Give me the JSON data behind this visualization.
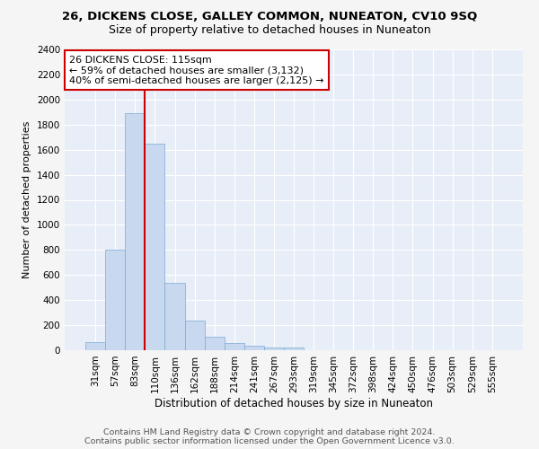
{
  "title": "26, DICKENS CLOSE, GALLEY COMMON, NUNEATON, CV10 9SQ",
  "subtitle": "Size of property relative to detached houses in Nuneaton",
  "xlabel": "Distribution of detached houses by size in Nuneaton",
  "ylabel": "Number of detached properties",
  "bar_color": "#c8d8ee",
  "bar_edge_color": "#7baad4",
  "background_color": "#e8eef8",
  "grid_color": "#ffffff",
  "categories": [
    "31sqm",
    "57sqm",
    "83sqm",
    "110sqm",
    "136sqm",
    "162sqm",
    "188sqm",
    "214sqm",
    "241sqm",
    "267sqm",
    "293sqm",
    "319sqm",
    "345sqm",
    "372sqm",
    "398sqm",
    "424sqm",
    "450sqm",
    "476sqm",
    "503sqm",
    "529sqm",
    "555sqm"
  ],
  "values": [
    65,
    800,
    1890,
    1650,
    540,
    235,
    110,
    60,
    35,
    25,
    20,
    0,
    0,
    0,
    0,
    0,
    0,
    0,
    0,
    0,
    0
  ],
  "ylim": [
    0,
    2400
  ],
  "yticks": [
    0,
    200,
    400,
    600,
    800,
    1000,
    1200,
    1400,
    1600,
    1800,
    2000,
    2200,
    2400
  ],
  "property_line_color": "#cc0000",
  "property_bin_index": 3,
  "annotation_line1": "26 DICKENS CLOSE: 115sqm",
  "annotation_line2": "← 59% of detached houses are smaller (3,132)",
  "annotation_line3": "40% of semi-detached houses are larger (2,125) →",
  "annotation_box_color": "#cc0000",
  "footer_line1": "Contains HM Land Registry data © Crown copyright and database right 2024.",
  "footer_line2": "Contains public sector information licensed under the Open Government Licence v3.0.",
  "title_fontsize": 9.5,
  "subtitle_fontsize": 9,
  "xlabel_fontsize": 8.5,
  "ylabel_fontsize": 8,
  "tick_fontsize": 7.5,
  "annotation_fontsize": 8,
  "footer_fontsize": 6.8
}
